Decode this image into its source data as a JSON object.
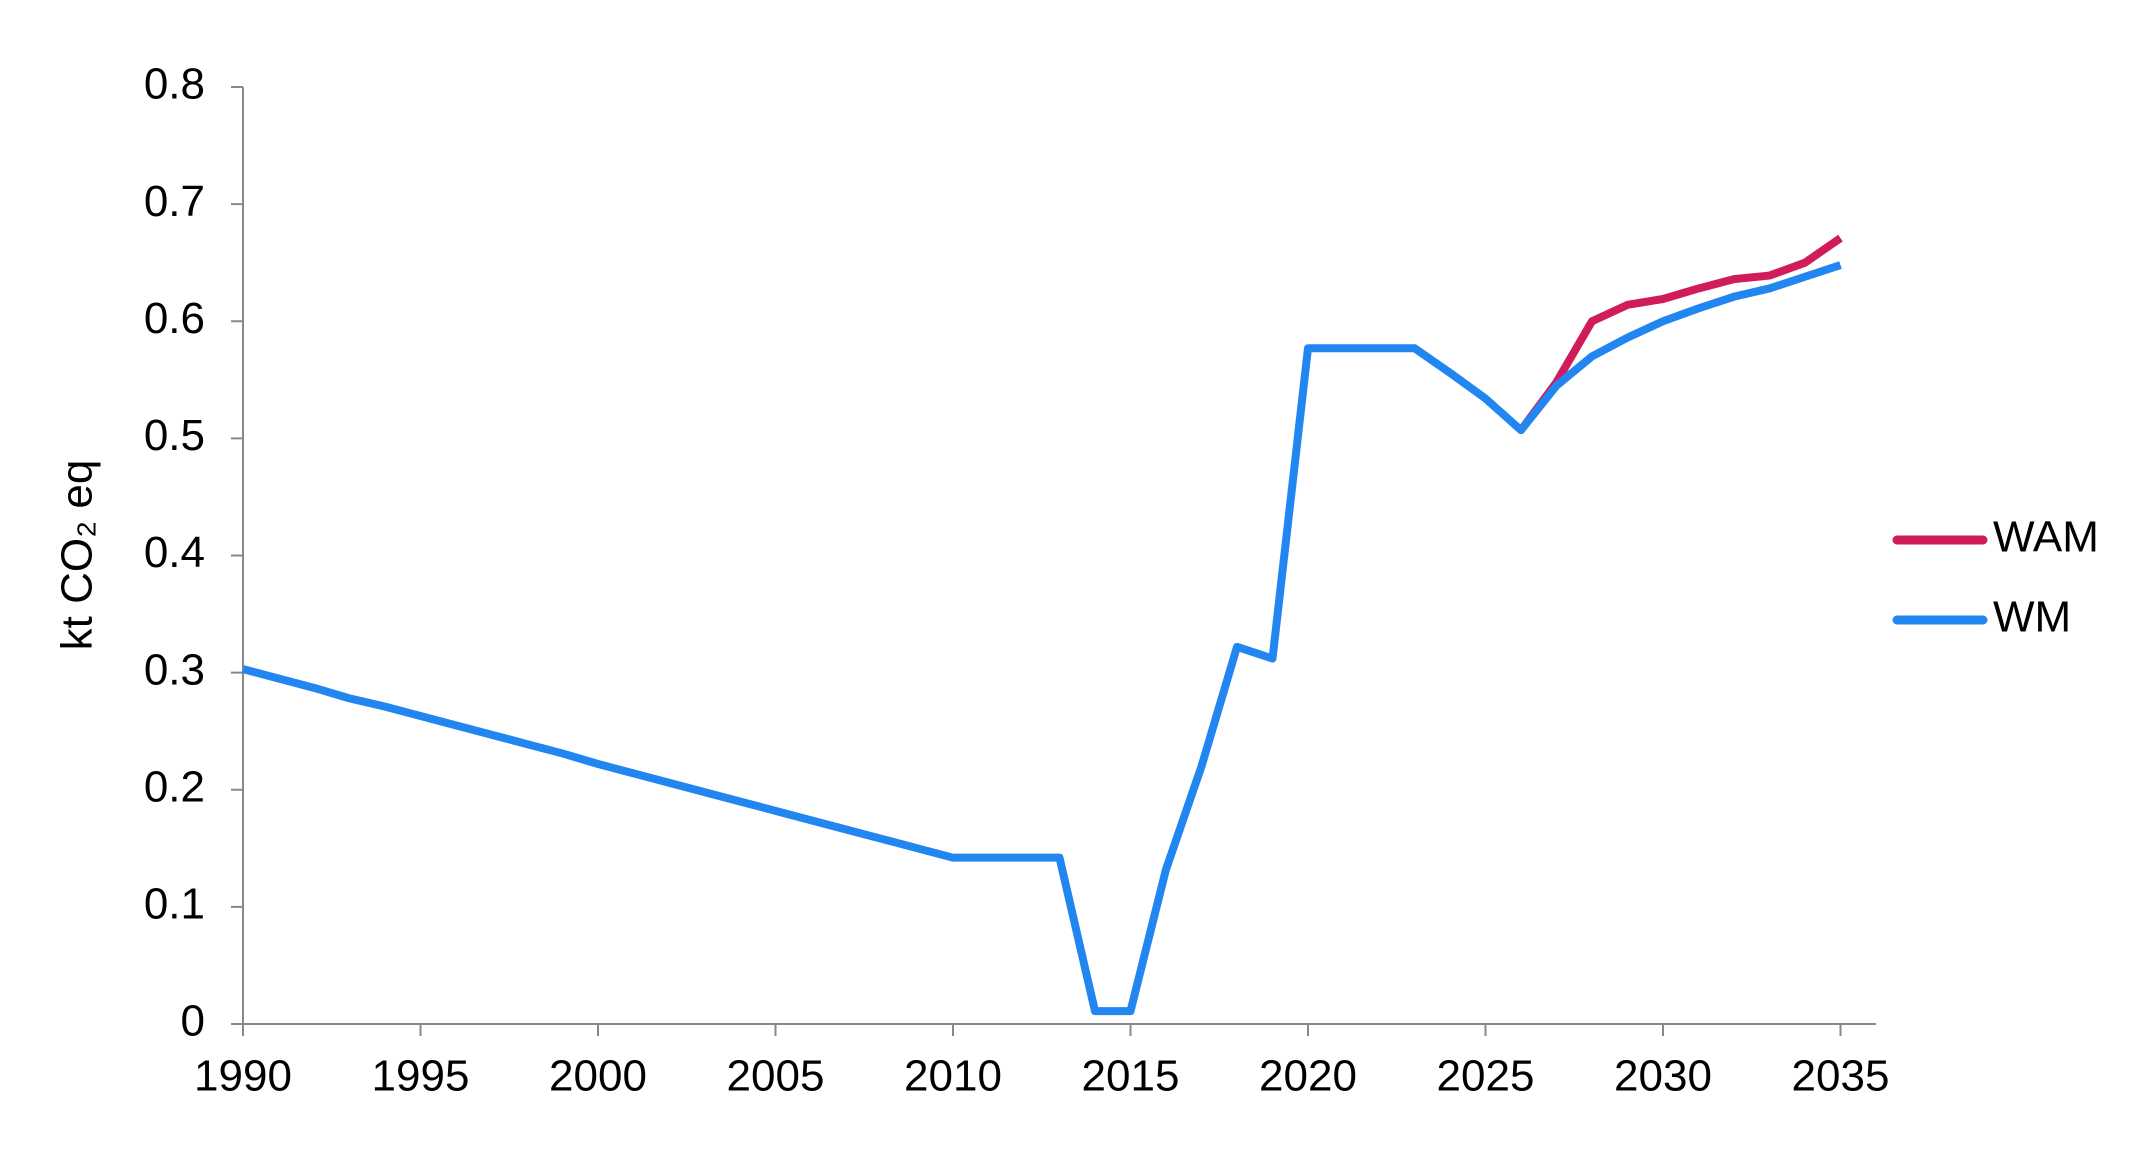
{
  "chart_data": {
    "type": "line",
    "y_label": "kt CO₂ eq",
    "x": [
      1990,
      1991,
      1992,
      1993,
      1994,
      1995,
      1996,
      1997,
      1998,
      1999,
      2000,
      2001,
      2002,
      2003,
      2004,
      2005,
      2006,
      2007,
      2008,
      2009,
      2010,
      2011,
      2012,
      2013,
      2014,
      2015,
      2016,
      2017,
      2018,
      2019,
      2020,
      2021,
      2022,
      2023,
      2024,
      2025,
      2026,
      2027,
      2028,
      2029,
      2030,
      2031,
      2032,
      2033,
      2034,
      2035
    ],
    "series": [
      {
        "name": "WAM",
        "color": "#d01c5b",
        "values": [
          null,
          null,
          null,
          null,
          null,
          null,
          null,
          null,
          null,
          null,
          null,
          null,
          null,
          null,
          null,
          null,
          null,
          null,
          null,
          null,
          null,
          null,
          null,
          null,
          null,
          null,
          null,
          null,
          null,
          null,
          null,
          null,
          null,
          null,
          null,
          null,
          0.507,
          0.548,
          0.6,
          0.614,
          0.619,
          0.628,
          0.636,
          0.639,
          0.65,
          0.671
        ]
      },
      {
        "name": "WM",
        "color": "#2286f0",
        "values": [
          0.303,
          0.295,
          0.287,
          0.278,
          0.271,
          0.263,
          0.255,
          0.247,
          0.239,
          0.231,
          0.222,
          0.214,
          0.206,
          0.198,
          0.19,
          0.182,
          0.174,
          0.166,
          0.158,
          0.15,
          0.142,
          0.142,
          0.142,
          0.142,
          0.011,
          0.011,
          0.132,
          0.22,
          0.322,
          0.312,
          0.577,
          0.577,
          0.577,
          0.577,
          0.556,
          0.534,
          0.507,
          0.545,
          0.57,
          0.586,
          0.6,
          0.611,
          0.621,
          0.628,
          0.638,
          0.648
        ]
      }
    ],
    "xlim": [
      1990,
      2036
    ],
    "xticks": [
      1990,
      1995,
      2000,
      2005,
      2010,
      2015,
      2020,
      2025,
      2030,
      2035
    ],
    "ylim": [
      0,
      0.8
    ],
    "yticks": [
      0,
      0.1,
      0.2,
      0.3,
      0.4,
      0.5,
      0.6,
      0.7,
      0.8
    ],
    "grid": false,
    "legend": "right"
  }
}
